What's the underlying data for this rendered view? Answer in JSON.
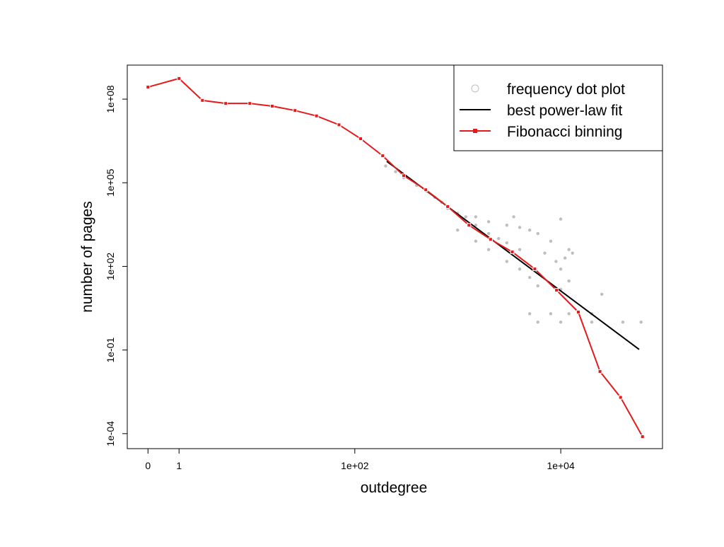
{
  "chart_data": {
    "type": "line",
    "xlabel": "outdegree",
    "ylabel": "number of pages",
    "xscale": "log1p",
    "yscale": "log",
    "xlim": [
      -0.37,
      96800
    ],
    "ylim": [
      2.9e-05,
      1660000000.0
    ],
    "xticks": [
      0,
      1,
      {
        "value": 100,
        "label": "1e+02"
      },
      {
        "value": 10000,
        "label": "1e+04"
      }
    ],
    "yticks": [
      {
        "value": 0.0001,
        "label": "1e-04"
      },
      {
        "value": 0.1,
        "label": "1e-01"
      },
      {
        "value": 100,
        "label": "1e+02"
      },
      {
        "value": 100000,
        "label": "1e+05"
      },
      {
        "value": 100000000,
        "label": "1e+08"
      }
    ],
    "legend": "top-right",
    "series": [
      {
        "name": "frequency dot plot",
        "color": "#bebebe",
        "style": "points",
        "x": [
          200,
          250,
          300,
          400,
          500,
          600,
          700,
          800,
          1000,
          1200,
          1500,
          2000,
          2500,
          3000,
          4000,
          1000,
          1500,
          2000,
          3000,
          4000,
          5000,
          6000,
          1500,
          2000,
          3000,
          4000,
          5000,
          6000,
          8000,
          7000,
          9000,
          12000,
          10000,
          3500,
          5000,
          8000,
          12000,
          20000,
          6000,
          10000,
          20000,
          40000,
          60000,
          10000,
          12000,
          10000,
          11000,
          13000,
          25000
        ],
        "values": [
          400000,
          250000,
          150000,
          80000,
          50000,
          30000,
          20000,
          12000,
          8000,
          6000,
          3000,
          1500,
          1000,
          700,
          400,
          2000,
          800,
          400,
          150,
          80,
          40,
          20,
          6000,
          4000,
          3000,
          2500,
          2000,
          1500,
          800,
          300,
          150,
          400,
          5000,
          6000,
          2,
          2,
          2,
          2,
          1,
          1,
          1,
          1,
          1,
          15,
          30,
          80,
          200,
          300,
          10
        ]
      },
      {
        "name": "best power-law fit",
        "color": "#000000",
        "style": "line",
        "x": [
          205,
          57500
        ],
        "values": [
          590000,
          0.105
        ]
      },
      {
        "name": "Fibonacci binning",
        "color": "#e41a1c",
        "style": "line+points",
        "x": [
          0,
          1,
          2.37,
          4.66,
          8.7,
          15,
          25.6,
          42,
          70,
          114,
          187,
          300,
          491,
          801,
          1288,
          2090,
          3390,
          5600,
          9100,
          14800,
          24000,
          38000,
          62000
        ],
        "values": [
          270000000,
          550000000,
          90000000,
          70000000,
          70000000,
          56000000,
          39000000,
          25000000,
          12000000,
          3800000,
          930000,
          180000,
          56000,
          14000,
          3000,
          930,
          330,
          81,
          14,
          2.3,
          0.017,
          0.002,
          7.8e-05
        ]
      }
    ]
  }
}
